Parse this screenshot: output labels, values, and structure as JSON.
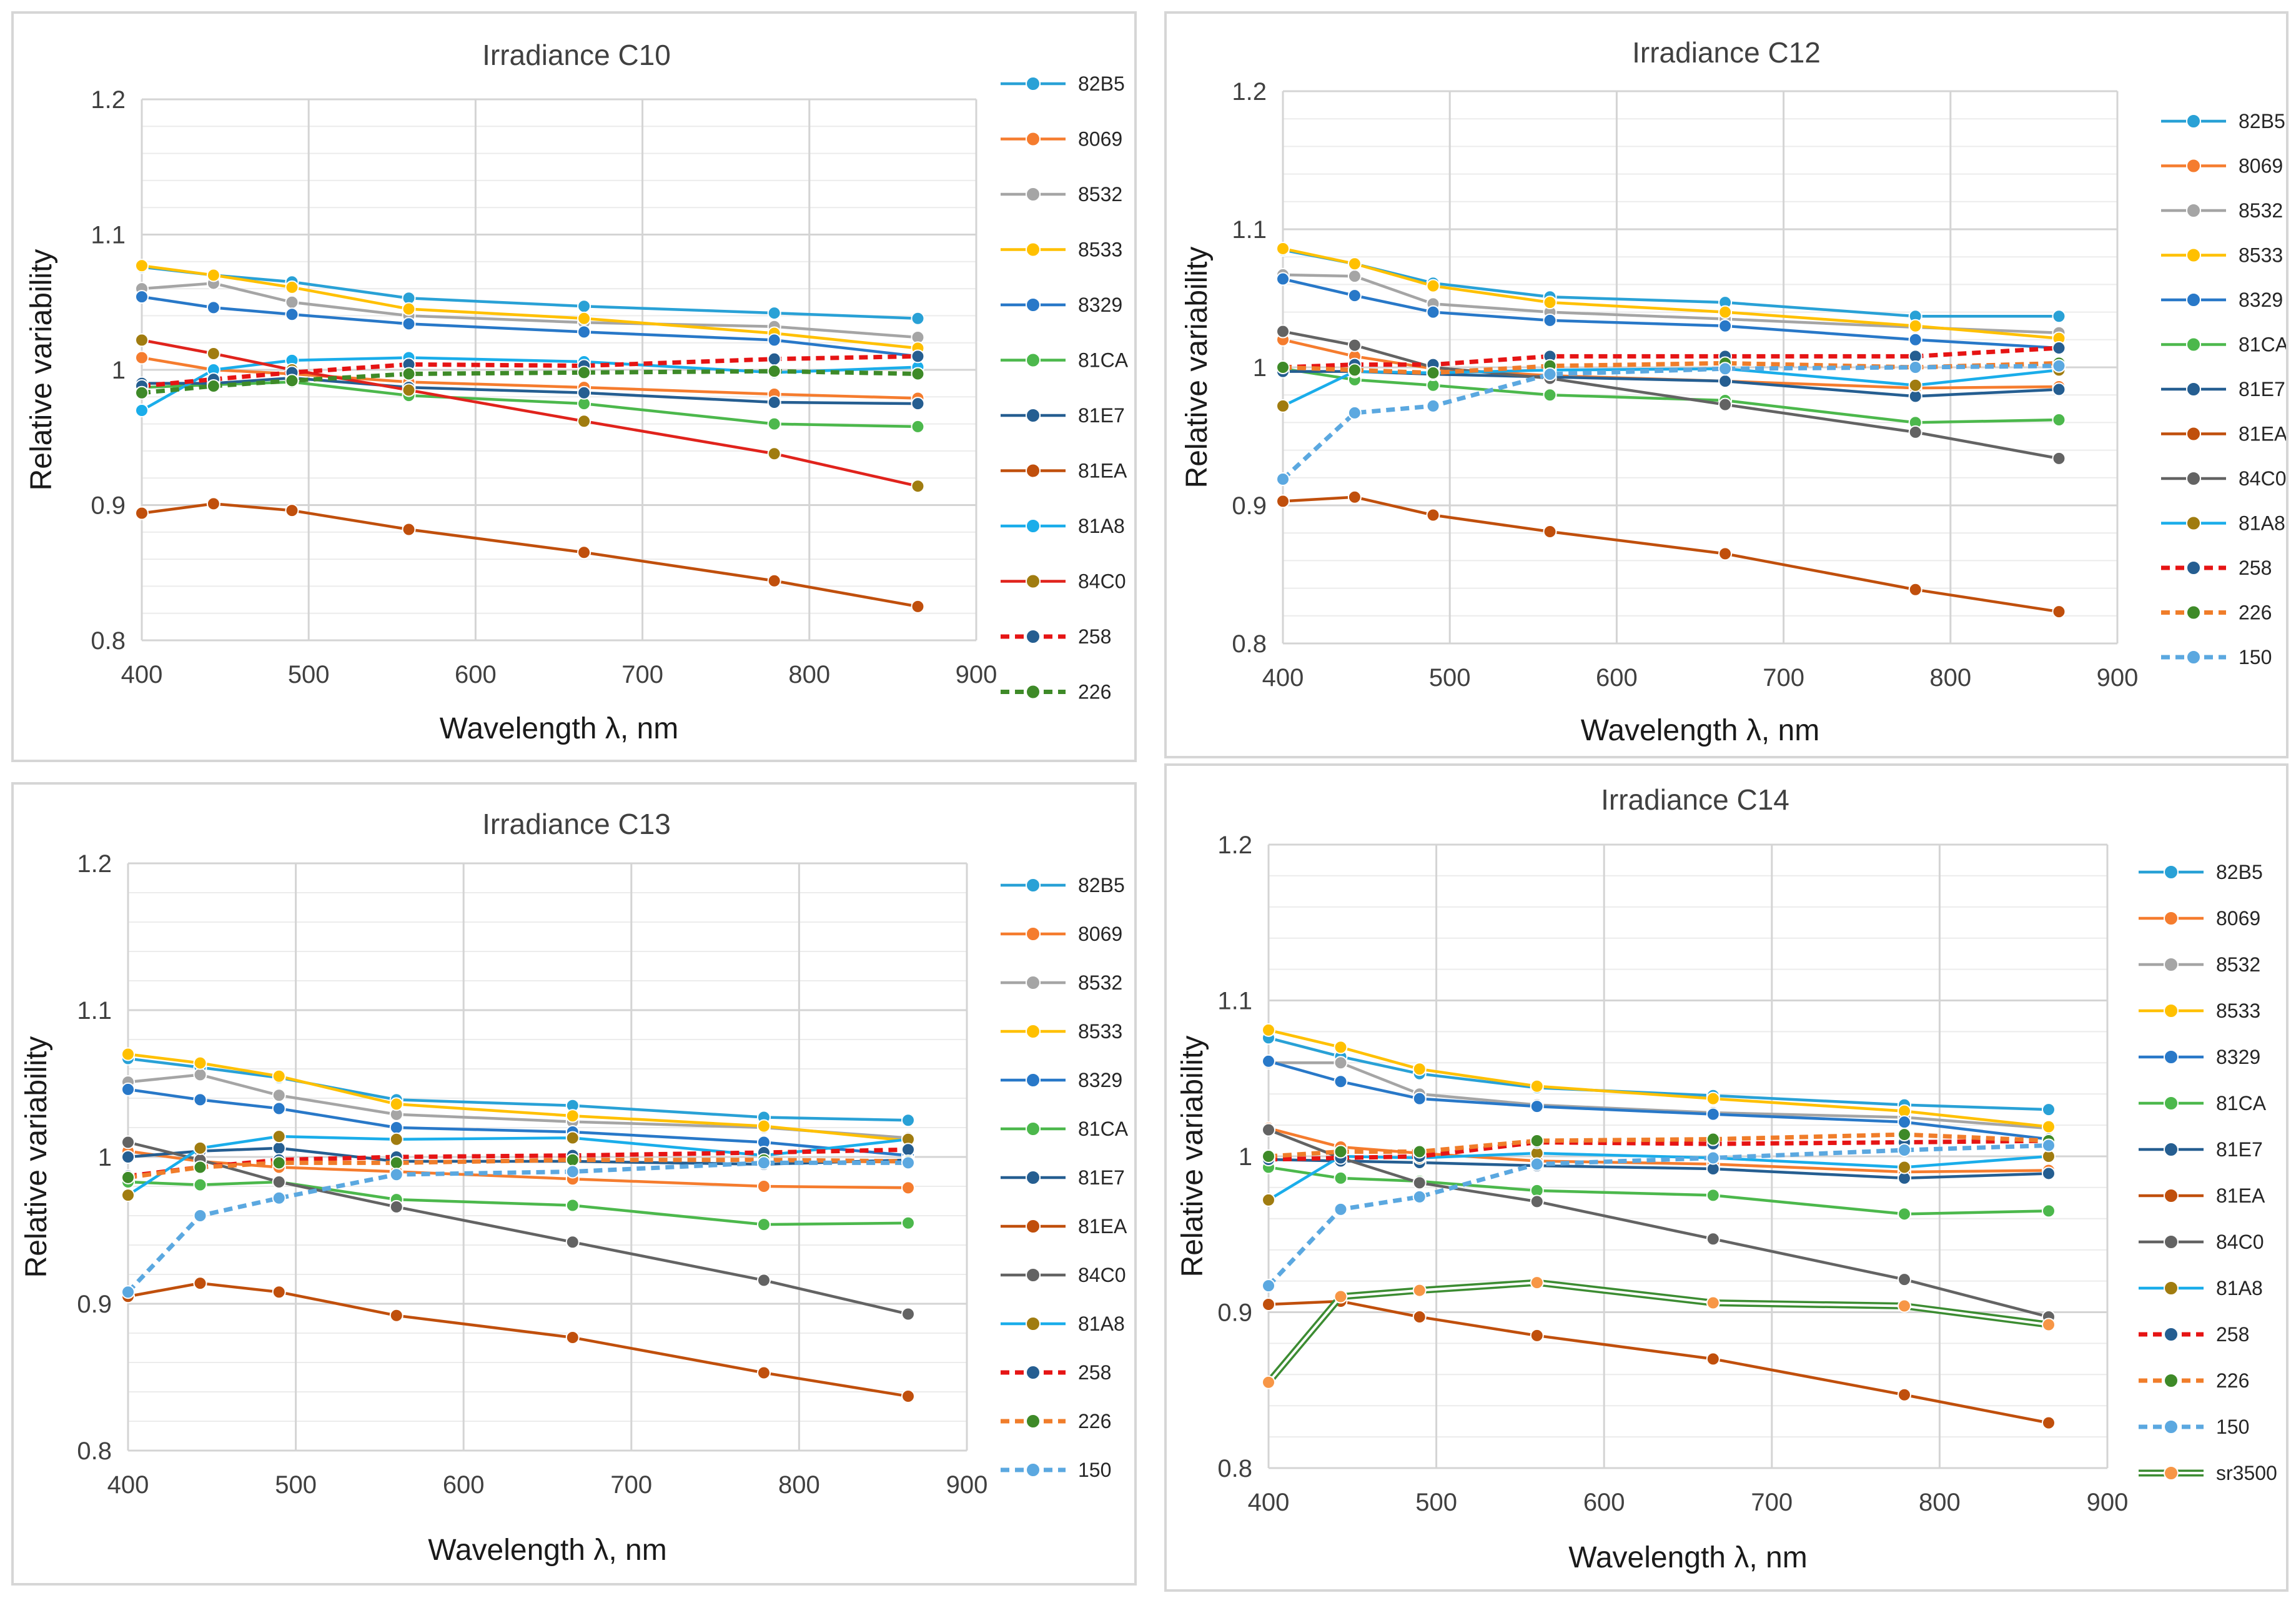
{
  "colors": {
    "82B5": "#29A1D6",
    "8069": "#F57C2E",
    "8532": "#A5A5A5",
    "8533": "#FFC000",
    "8329": "#2878C8",
    "81CA": "#4CB84C",
    "81E7": "#255E91",
    "81EA": "#C04F0C",
    "84C0": "#636363",
    "81A8": "#A07C10",
    "81A8_C10": "#1AADEA",
    "84C0_C10": "#E0231C",
    "258": "#E61414",
    "226": "#F07D2A",
    "226_C10": "#3E8A28",
    "150": "#5BA8E0",
    "sr3500": "#3C8C32"
  },
  "chart_data": [
    {
      "id": "C10",
      "type": "line",
      "title": "Irradiance C10",
      "xlabel": "Wavelength λ, nm",
      "ylabel": "Relative variability",
      "xlim": [
        400,
        900
      ],
      "ylim": [
        0.8,
        1.2
      ],
      "xticks": [
        "400",
        "500",
        "600",
        "700",
        "800",
        "900"
      ],
      "yticks": [
        "0.8",
        "0.9",
        "1",
        "1.1",
        "1.2"
      ],
      "x": [
        400,
        443,
        490,
        560,
        665,
        779,
        865
      ],
      "series": [
        {
          "name": "82B5",
          "color": "#29A1D6",
          "values": [
            1.076,
            1.07,
            1.065,
            1.053,
            1.047,
            1.042,
            1.038
          ]
        },
        {
          "name": "8069",
          "color": "#F57C2E",
          "values": [
            1.009,
            1.0,
            0.997,
            0.991,
            0.987,
            0.982,
            0.979
          ]
        },
        {
          "name": "8532",
          "color": "#A5A5A5",
          "values": [
            1.06,
            1.064,
            1.05,
            1.04,
            1.035,
            1.032,
            1.024
          ]
        },
        {
          "name": "8533",
          "color": "#FFC000",
          "values": [
            1.077,
            1.07,
            1.061,
            1.045,
            1.038,
            1.027,
            1.016
          ]
        },
        {
          "name": "8329",
          "color": "#2878C8",
          "values": [
            1.054,
            1.046,
            1.041,
            1.034,
            1.028,
            1.022,
            1.01
          ]
        },
        {
          "name": "81CA",
          "color": "#4CB84C",
          "values": [
            0.987,
            0.989,
            0.991,
            0.981,
            0.975,
            0.96,
            0.958
          ]
        },
        {
          "name": "81E7",
          "color": "#255E91",
          "values": [
            0.99,
            0.99,
            0.994,
            0.987,
            0.983,
            0.976,
            0.975
          ]
        },
        {
          "name": "81EA",
          "color": "#C04F0C",
          "values": [
            0.894,
            0.901,
            0.896,
            0.882,
            0.865,
            0.844,
            0.825
          ]
        },
        {
          "name": "81A8",
          "color": "#1AADEA",
          "values": [
            0.97,
            1.0,
            1.007,
            1.009,
            1.006,
            0.998,
            1.002
          ]
        },
        {
          "name": "84C0",
          "color": "#E0231C",
          "marker": "#A07C10",
          "values": [
            1.022,
            1.012,
            1.0,
            0.985,
            0.962,
            0.938,
            0.914
          ]
        },
        {
          "name": "258",
          "color": "#E61414",
          "marker": "#255E91",
          "dash": true,
          "values": [
            0.988,
            0.993,
            0.998,
            1.004,
            1.003,
            1.008,
            1.01
          ]
        },
        {
          "name": "226",
          "color": "#3E8A28",
          "marker": "#3E8A28",
          "dash": true,
          "values": [
            0.983,
            0.988,
            0.992,
            0.997,
            0.998,
            0.999,
            0.997
          ]
        }
      ]
    },
    {
      "id": "C12",
      "type": "line",
      "title": "Irradiance C12",
      "xlabel": "Wavelength λ, nm",
      "ylabel": "Relative variability",
      "xlim": [
        400,
        900
      ],
      "ylim": [
        0.8,
        1.2
      ],
      "xticks": [
        "400",
        "500",
        "600",
        "700",
        "800",
        "900"
      ],
      "yticks": [
        "0.8",
        "0.9",
        "1",
        "1.1",
        "1.2"
      ],
      "x": [
        400,
        443,
        490,
        560,
        665,
        779,
        865
      ],
      "series": [
        {
          "name": "82B5",
          "color": "#29A1D6",
          "values": [
            1.085,
            1.075,
            1.061,
            1.051,
            1.047,
            1.037,
            1.037
          ]
        },
        {
          "name": "8069",
          "color": "#F57C2E",
          "values": [
            1.02,
            1.008,
            0.999,
            0.994,
            0.99,
            0.985,
            0.986
          ]
        },
        {
          "name": "8532",
          "color": "#A5A5A5",
          "values": [
            1.067,
            1.066,
            1.046,
            1.04,
            1.035,
            1.029,
            1.025
          ]
        },
        {
          "name": "8533",
          "color": "#FFC000",
          "values": [
            1.086,
            1.075,
            1.059,
            1.047,
            1.04,
            1.03,
            1.021
          ]
        },
        {
          "name": "8329",
          "color": "#2878C8",
          "values": [
            1.064,
            1.052,
            1.04,
            1.034,
            1.03,
            1.02,
            1.014
          ]
        },
        {
          "name": "81CA",
          "color": "#4CB84C",
          "values": [
            0.999,
            0.991,
            0.987,
            0.98,
            0.976,
            0.96,
            0.962
          ]
        },
        {
          "name": "81E7",
          "color": "#255E91",
          "values": [
            0.997,
            0.997,
            0.995,
            0.993,
            0.99,
            0.979,
            0.984
          ]
        },
        {
          "name": "81EA",
          "color": "#C04F0C",
          "values": [
            0.903,
            0.906,
            0.893,
            0.881,
            0.865,
            0.839,
            0.823
          ]
        },
        {
          "name": "84C0",
          "color": "#636363",
          "values": [
            1.026,
            1.016,
            1.0,
            0.992,
            0.973,
            0.953,
            0.934
          ]
        },
        {
          "name": "81A8",
          "color": "#1AADEA",
          "marker": "#A07C10",
          "values": [
            0.972,
            0.997,
            0.996,
            0.998,
            0.999,
            0.987,
            0.998
          ]
        },
        {
          "name": "258",
          "color": "#E61414",
          "marker": "#255E91",
          "dash": true,
          "values": [
            1.0,
            1.002,
            1.002,
            1.008,
            1.008,
            1.008,
            1.014
          ]
        },
        {
          "name": "226",
          "color": "#F07D2A",
          "marker": "#3E8A28",
          "dash": true,
          "values": [
            1.0,
            0.998,
            0.996,
            1.001,
            1.003,
            1.0,
            1.003
          ]
        },
        {
          "name": "150",
          "color": "#5BA8E0",
          "dash": true,
          "values": [
            0.919,
            0.967,
            0.972,
            0.995,
            0.999,
            1.0,
            1.001
          ]
        }
      ]
    },
    {
      "id": "C13",
      "type": "line",
      "title": "Irradiance C13",
      "xlabel": "Wavelength λ, nm",
      "ylabel": "Relative variability",
      "xlim": [
        400,
        900
      ],
      "ylim": [
        0.8,
        1.2
      ],
      "xticks": [
        "400",
        "500",
        "600",
        "700",
        "800",
        "900"
      ],
      "yticks": [
        "0.8",
        "0.9",
        "1",
        "1.1",
        "1.2"
      ],
      "x": [
        400,
        443,
        490,
        560,
        665,
        779,
        865
      ],
      "series": [
        {
          "name": "82B5",
          "color": "#29A1D6",
          "values": [
            1.067,
            1.061,
            1.054,
            1.039,
            1.035,
            1.027,
            1.025
          ]
        },
        {
          "name": "8069",
          "color": "#F57C2E",
          "values": [
            1.004,
            0.997,
            0.993,
            0.99,
            0.985,
            0.98,
            0.979
          ]
        },
        {
          "name": "8532",
          "color": "#A5A5A5",
          "values": [
            1.051,
            1.056,
            1.042,
            1.029,
            1.024,
            1.02,
            1.013
          ]
        },
        {
          "name": "8533",
          "color": "#FFC000",
          "values": [
            1.07,
            1.064,
            1.055,
            1.036,
            1.028,
            1.021,
            1.011
          ]
        },
        {
          "name": "8329",
          "color": "#2878C8",
          "values": [
            1.046,
            1.039,
            1.033,
            1.02,
            1.017,
            1.01,
            1.001
          ]
        },
        {
          "name": "81CA",
          "color": "#4CB84C",
          "values": [
            0.983,
            0.981,
            0.983,
            0.971,
            0.967,
            0.954,
            0.955
          ]
        },
        {
          "name": "81E7",
          "color": "#255E91",
          "values": [
            1.0,
            1.004,
            1.006,
            0.997,
            0.997,
            0.995,
            0.998
          ]
        },
        {
          "name": "81EA",
          "color": "#C04F0C",
          "values": [
            0.905,
            0.914,
            0.908,
            0.892,
            0.877,
            0.853,
            0.837
          ]
        },
        {
          "name": "84C0",
          "color": "#636363",
          "values": [
            1.01,
            0.998,
            0.983,
            0.966,
            0.942,
            0.916,
            0.893
          ]
        },
        {
          "name": "81A8",
          "color": "#1AADEA",
          "marker": "#A07C10",
          "values": [
            0.974,
            1.006,
            1.014,
            1.012,
            1.013,
            1.001,
            1.012
          ]
        },
        {
          "name": "258",
          "color": "#E61414",
          "marker": "#255E91",
          "dash": true,
          "values": [
            0.987,
            0.993,
            0.998,
            1.0,
            1.001,
            1.003,
            1.005
          ]
        },
        {
          "name": "226",
          "color": "#F07D2A",
          "marker": "#3E8A28",
          "dash": true,
          "values": [
            0.986,
            0.993,
            0.996,
            0.996,
            0.998,
            0.998,
            0.997
          ]
        },
        {
          "name": "150",
          "color": "#5BA8E0",
          "dash": true,
          "values": [
            0.908,
            0.96,
            0.972,
            0.988,
            0.99,
            0.996,
            0.996
          ]
        }
      ]
    },
    {
      "id": "C14",
      "type": "line",
      "title": "Irradiance C14",
      "xlabel": "Wavelength λ, nm",
      "ylabel": "Relative variability",
      "xlim": [
        400,
        900
      ],
      "ylim": [
        0.8,
        1.2
      ],
      "xticks": [
        "400",
        "500",
        "600",
        "700",
        "800",
        "900"
      ],
      "yticks": [
        "0.8",
        "0.9",
        "1",
        "1.1",
        "1.2"
      ],
      "x": [
        400,
        443,
        490,
        560,
        665,
        779,
        865
      ],
      "series": [
        {
          "name": "82B5",
          "color": "#29A1D6",
          "values": [
            1.076,
            1.064,
            1.053,
            1.044,
            1.039,
            1.033,
            1.03
          ]
        },
        {
          "name": "8069",
          "color": "#F57C2E",
          "values": [
            1.018,
            1.006,
            1.002,
            0.997,
            0.995,
            0.99,
            0.991
          ]
        },
        {
          "name": "8532",
          "color": "#A5A5A5",
          "values": [
            1.06,
            1.06,
            1.04,
            1.033,
            1.028,
            1.025,
            1.018
          ]
        },
        {
          "name": "8533",
          "color": "#FFC000",
          "values": [
            1.081,
            1.07,
            1.056,
            1.045,
            1.037,
            1.029,
            1.019
          ]
        },
        {
          "name": "8329",
          "color": "#2878C8",
          "values": [
            1.061,
            1.048,
            1.037,
            1.032,
            1.027,
            1.022,
            1.011
          ]
        },
        {
          "name": "81CA",
          "color": "#4CB84C",
          "values": [
            0.993,
            0.986,
            0.984,
            0.978,
            0.975,
            0.963,
            0.965
          ]
        },
        {
          "name": "81E7",
          "color": "#255E91",
          "values": [
            0.998,
            0.997,
            0.996,
            0.994,
            0.992,
            0.986,
            0.989
          ]
        },
        {
          "name": "81EA",
          "color": "#C04F0C",
          "values": [
            0.905,
            0.907,
            0.897,
            0.885,
            0.87,
            0.847,
            0.829
          ]
        },
        {
          "name": "84C0",
          "color": "#636363",
          "values": [
            1.017,
            0.999,
            0.983,
            0.971,
            0.947,
            0.921,
            0.897
          ]
        },
        {
          "name": "81A8",
          "color": "#1AADEA",
          "marker": "#A07C10",
          "values": [
            0.972,
            1.0,
            0.999,
            1.002,
            0.999,
            0.993,
            1.0
          ]
        },
        {
          "name": "258",
          "color": "#E61414",
          "marker": "#255E91",
          "dash": true,
          "values": [
            0.998,
            0.999,
            1.0,
            1.009,
            1.008,
            1.009,
            1.01
          ]
        },
        {
          "name": "226",
          "color": "#F07D2A",
          "marker": "#3E8A28",
          "dash": true,
          "values": [
            1.0,
            1.003,
            1.003,
            1.01,
            1.011,
            1.014,
            1.01
          ]
        },
        {
          "name": "150",
          "color": "#5BA8E0",
          "dash": true,
          "values": [
            0.917,
            0.966,
            0.974,
            0.995,
            0.999,
            1.004,
            1.007
          ]
        },
        {
          "name": "sr3500",
          "color": "#3C8C32",
          "marker": "#F79646",
          "double": true,
          "values": [
            0.855,
            0.91,
            0.914,
            0.919,
            0.906,
            0.904,
            0.892
          ]
        }
      ]
    }
  ]
}
